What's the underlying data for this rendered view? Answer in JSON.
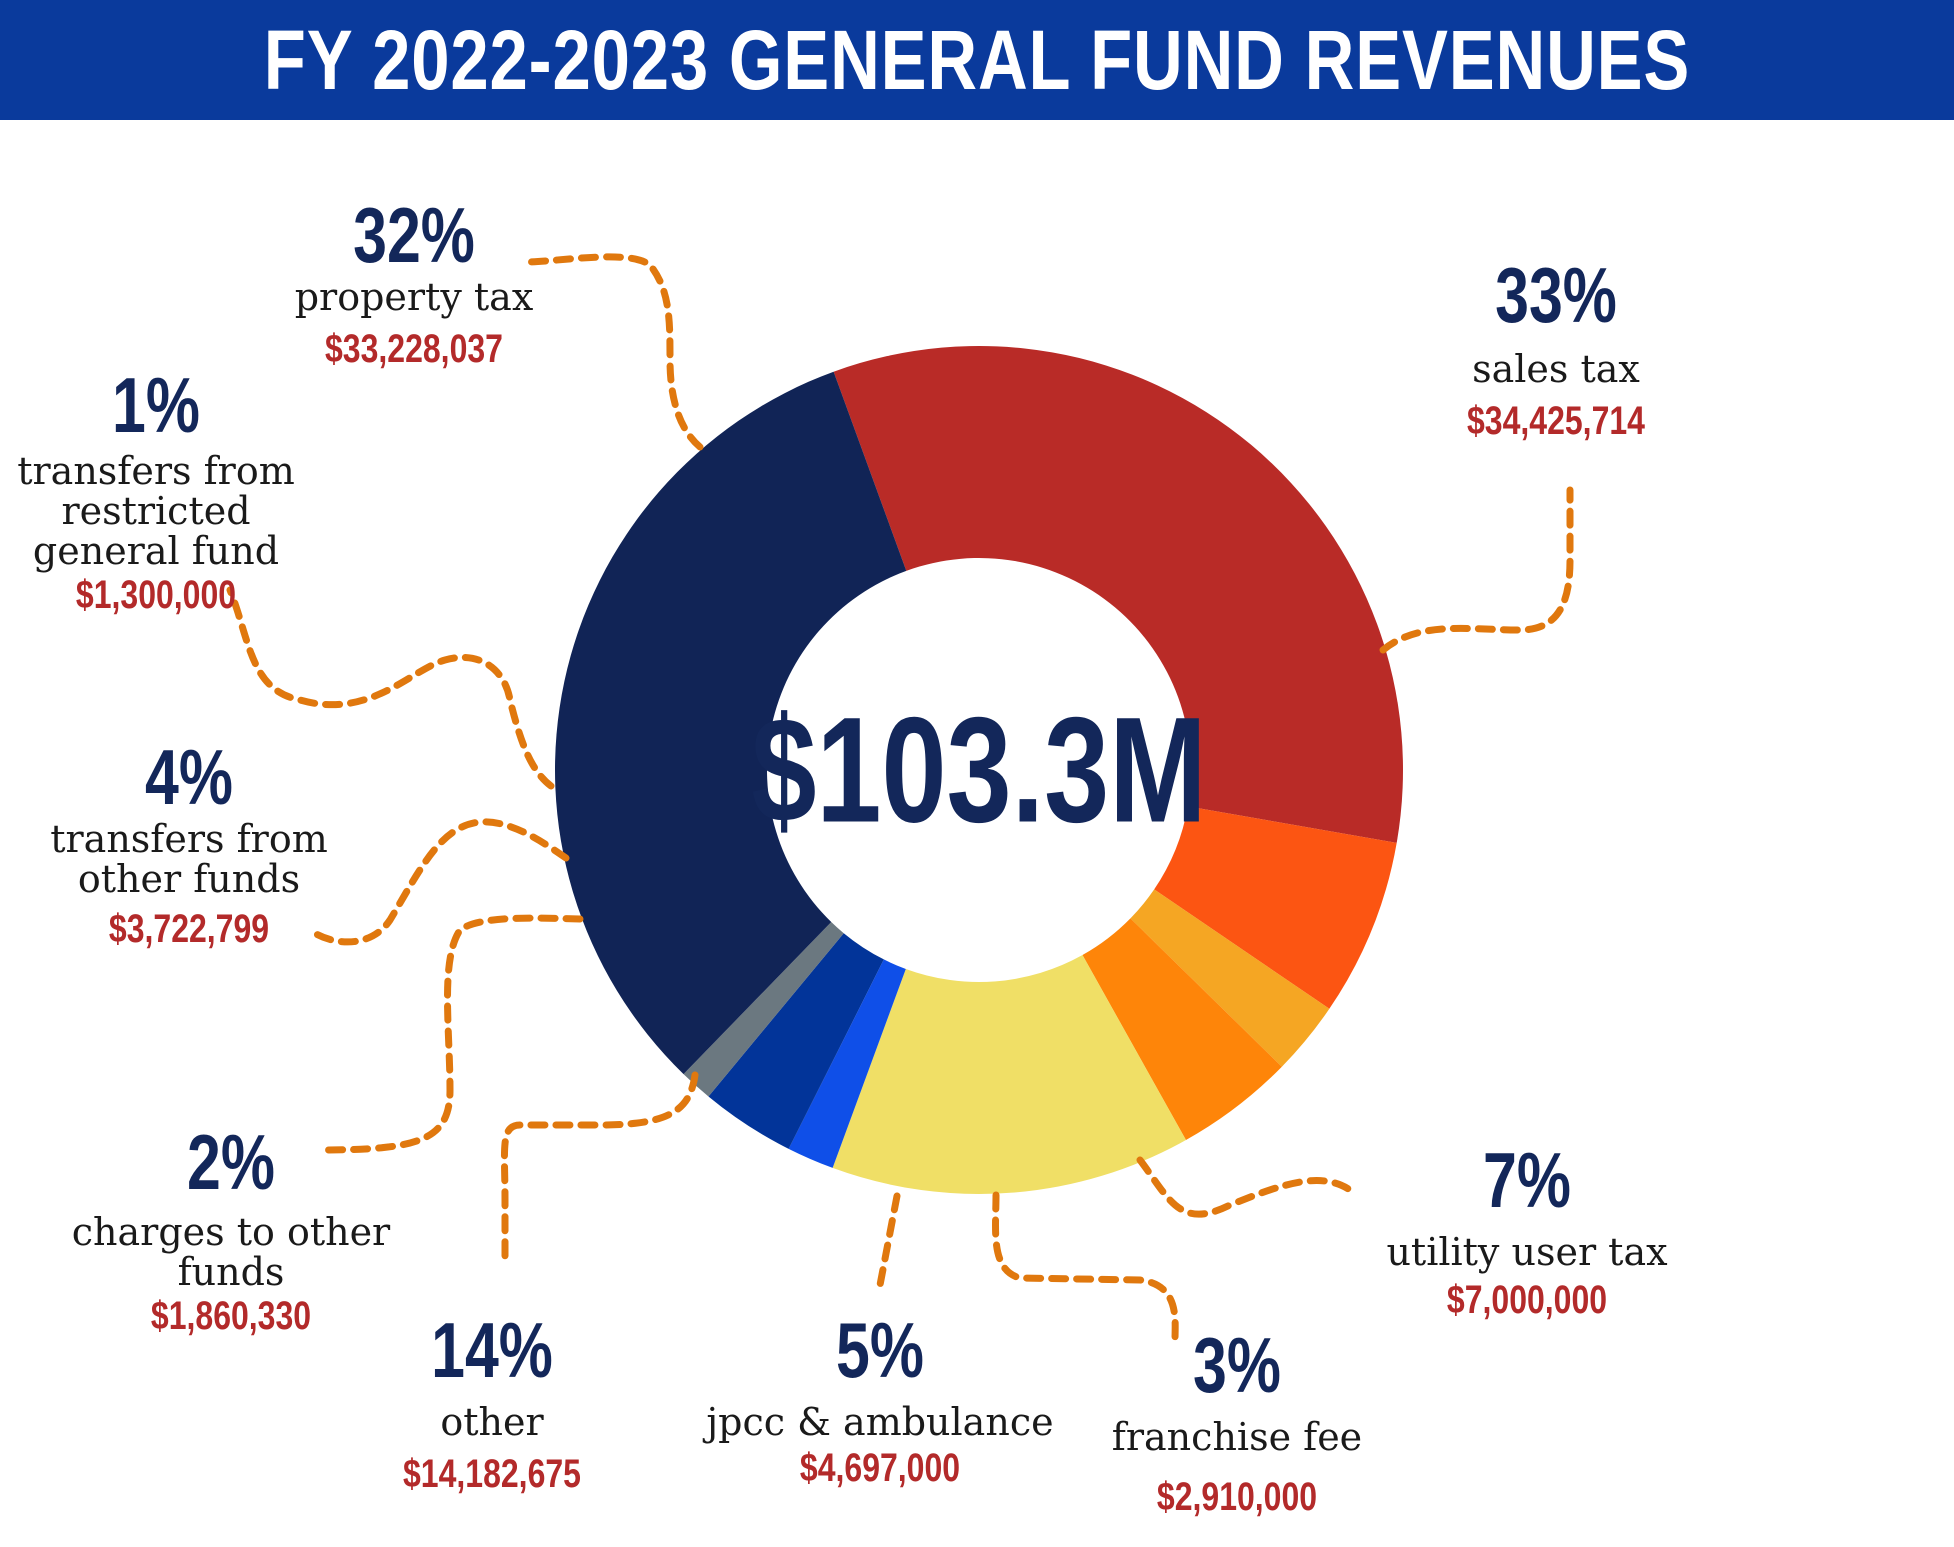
{
  "header": {
    "title": "FY 2022-2023 GENERAL FUND REVENUES"
  },
  "chart_data": {
    "type": "pie",
    "title": "FY 2022-2023 GENERAL FUND REVENUES",
    "total_label": "$103.3M",
    "slices": [
      {
        "label": "sales tax",
        "percent": "33%",
        "amount": "$34,425,714",
        "value": 34425714,
        "color": "#b92b27"
      },
      {
        "label": "utility user tax",
        "percent": "7%",
        "amount": "$7,000,000",
        "value": 7000000,
        "color": "#fc5512"
      },
      {
        "label": "franchise fee",
        "percent": "3%",
        "amount": "$2,910,000",
        "value": 2910000,
        "color": "#f5a623"
      },
      {
        "label": "jpcc & ambulance",
        "percent": "5%",
        "amount": "$4,697,000",
        "value": 4697000,
        "color": "#fe8509"
      },
      {
        "label": "other",
        "percent": "14%",
        "amount": "$14,182,675",
        "value": 14182675,
        "color": "#f0df66"
      },
      {
        "label": "charges to other funds",
        "percent": "2%",
        "amount": "$1,860,330",
        "value": 1860330,
        "color": "#0f4fe8"
      },
      {
        "label": "transfers from other funds",
        "percent": "4%",
        "amount": "$3,722,799",
        "value": 3722799,
        "color": "#023499"
      },
      {
        "label": "transfers from restricted general fund",
        "percent": "1%",
        "amount": "$1,300,000",
        "value": 1300000,
        "color": "#6b7880"
      },
      {
        "label": "property tax",
        "percent": "32%",
        "amount": "$33,228,037",
        "value": 33228037,
        "color": "#112456"
      }
    ]
  },
  "labels": {
    "sales": {
      "pct": "33%",
      "line1": "sales tax",
      "amt": "$34,425,714"
    },
    "property": {
      "pct": "32%",
      "line1": "property tax",
      "amt": "$33,228,037"
    },
    "restricted": {
      "pct": "1%",
      "line1": "transfers from",
      "line2": "restricted",
      "line3": "general fund",
      "amt": "$1,300,000"
    },
    "other_funds": {
      "pct": "4%",
      "line1": "transfers from",
      "line2": "other funds",
      "amt": "$3,722,799"
    },
    "charges": {
      "pct": "2%",
      "line1": "charges to other",
      "line2": "funds",
      "amt": "$1,860,330"
    },
    "other": {
      "pct": "14%",
      "line1": "other",
      "amt": "$14,182,675"
    },
    "jpcc": {
      "pct": "5%",
      "line1": "jpcc & ambulance",
      "amt": "$4,697,000"
    },
    "franchise": {
      "pct": "3%",
      "line1": "franchise fee",
      "amt": "$2,910,000"
    },
    "utility": {
      "pct": "7%",
      "line1": "utility user tax",
      "amt": "$7,000,000"
    }
  },
  "colors": {
    "banner": "#0a3a9c",
    "leader": "#e0780e",
    "navy": "#13275a",
    "red": "#b32a2a"
  }
}
